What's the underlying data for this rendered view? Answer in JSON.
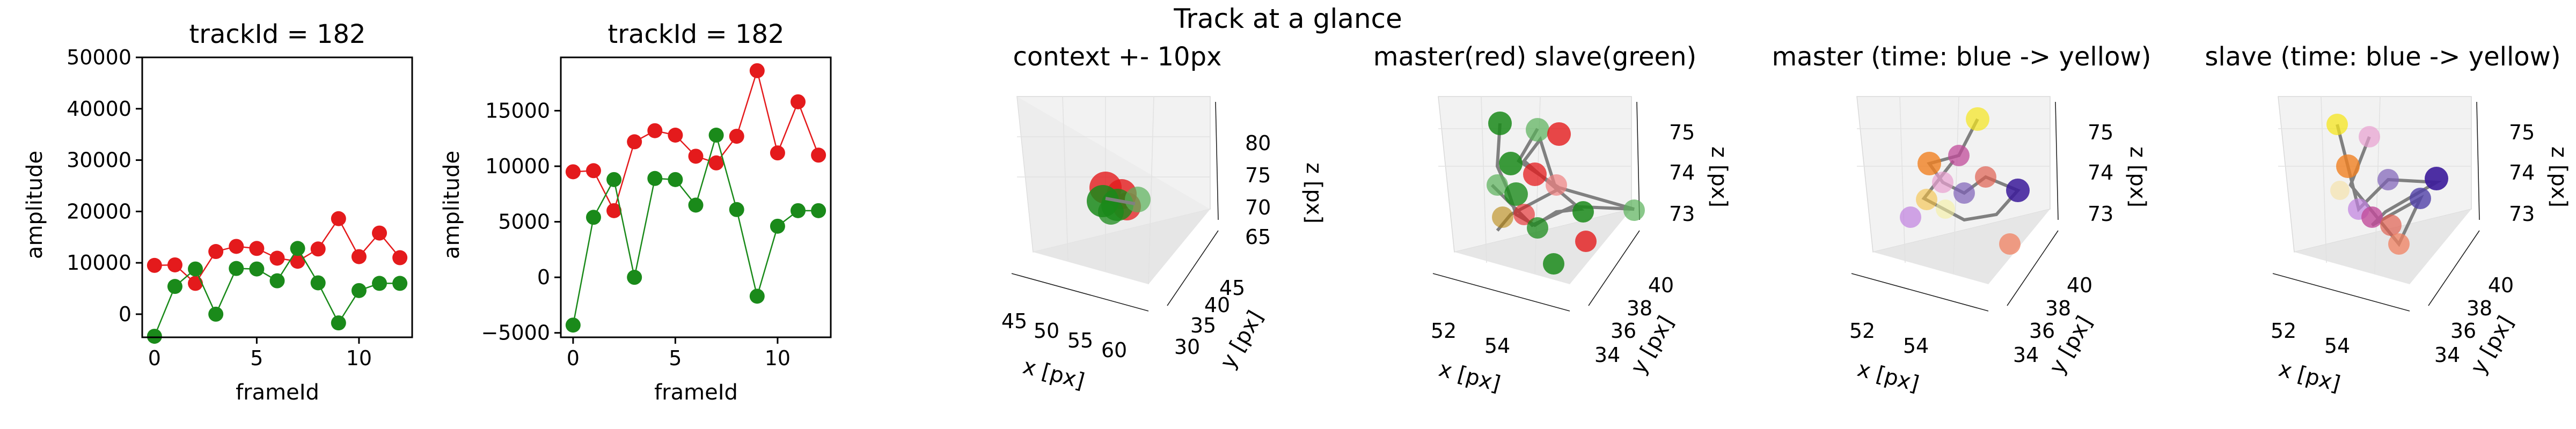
{
  "suptitle": "Track at a glance",
  "chart_data": [
    {
      "type": "line",
      "title": "trackId = 182",
      "xlabel": "frameId",
      "ylabel": "amplitude",
      "xlim": [
        -0.6,
        12.6
      ],
      "ylim": [
        -4500,
        50000
      ],
      "xticks": [
        "0",
        "5",
        "10"
      ],
      "yticks": [
        "0",
        "10000",
        "20000",
        "30000",
        "40000",
        "50000"
      ],
      "x": [
        0,
        1,
        2,
        3,
        4,
        5,
        6,
        7,
        8,
        9,
        10,
        11,
        12
      ],
      "series": [
        {
          "color": "#e41a1c",
          "values": [
            9500,
            9600,
            6000,
            12200,
            13200,
            12800,
            10900,
            10300,
            12700,
            18600,
            11200,
            15800,
            11000
          ]
        },
        {
          "color": "#1a8a1a",
          "values": [
            -4300,
            5400,
            8800,
            0,
            8900,
            8800,
            6500,
            12800,
            6100,
            -1700,
            4600,
            6000,
            6000
          ]
        }
      ]
    },
    {
      "type": "line",
      "title": "trackId = 182",
      "xlabel": "frameId",
      "ylabel": "amplitude",
      "xlim": [
        -0.6,
        12.6
      ],
      "ylim": [
        -5400,
        19800
      ],
      "xticks": [
        "0",
        "5",
        "10"
      ],
      "yticks": [
        "−5000",
        "0",
        "5000",
        "10000",
        "15000"
      ],
      "x": [
        0,
        1,
        2,
        3,
        4,
        5,
        6,
        7,
        8,
        9,
        10,
        11,
        12
      ],
      "series": [
        {
          "color": "#e41a1c",
          "values": [
            9500,
            9600,
            6000,
            12200,
            13200,
            12800,
            10900,
            10300,
            12700,
            18600,
            11200,
            15800,
            11000
          ]
        },
        {
          "color": "#1a8a1a",
          "values": [
            -4300,
            5400,
            8800,
            0,
            8900,
            8800,
            6500,
            12800,
            6100,
            -1700,
            4600,
            6000,
            6000
          ]
        }
      ]
    },
    {
      "type": "scatter",
      "title": "context +- 10px",
      "xlabel": "x [px]",
      "ylabel": "y [px]",
      "zlabel": "z [px]",
      "xticks": [
        "45",
        "50",
        "55",
        "60"
      ],
      "yticks": [
        "30",
        "35",
        "40",
        "45"
      ],
      "zticks": [
        "65",
        "70",
        "75",
        "80"
      ],
      "colors": [
        "#e41a1c",
        "#1a8a1a"
      ]
    },
    {
      "type": "scatter",
      "title": "master(red) slave(green)",
      "xlabel": "x [px]",
      "ylabel": "y [px]",
      "zlabel": "z [px]",
      "xticks": [
        "52",
        "54"
      ],
      "yticks": [
        "34",
        "36",
        "38",
        "40"
      ],
      "zticks": [
        "73",
        "74",
        "75"
      ],
      "colors": [
        "#e41a1c",
        "#1a8a1a"
      ]
    },
    {
      "type": "scatter",
      "title": "master (time: blue -> yellow)",
      "xlabel": "x [px]",
      "ylabel": "y [px]",
      "zlabel": "z [px]",
      "xticks": [
        "52",
        "54"
      ],
      "yticks": [
        "34",
        "36",
        "38",
        "40"
      ],
      "zticks": [
        "73",
        "74",
        "75"
      ],
      "colors": [
        "#3b1a9a",
        "#f5e61d"
      ]
    },
    {
      "type": "scatter",
      "title": "slave (time: blue -> yellow)",
      "xlabel": "x [px]",
      "ylabel": "y [px]",
      "zlabel": "z [px]",
      "xticks": [
        "52",
        "54"
      ],
      "yticks": [
        "34",
        "36",
        "38",
        "40"
      ],
      "zticks": [
        "73",
        "74",
        "75"
      ],
      "colors": [
        "#3b1a9a",
        "#f5e61d"
      ]
    }
  ]
}
